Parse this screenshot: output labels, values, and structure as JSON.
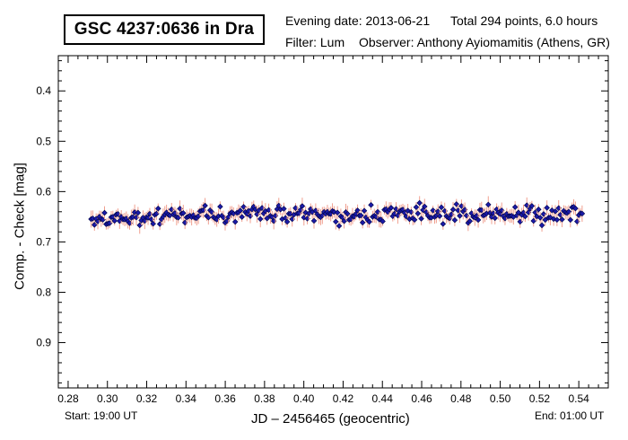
{
  "header": {
    "title": "GSC 4237:0636 in Dra",
    "evening_date": "Evening date: 2013-06-21",
    "total": "Total 294 points, 6.0 hours",
    "filter": "Filter: Lum",
    "observer": "Observer: Anthony Ayiomamitis (Athens, GR)"
  },
  "footer": {
    "start": "Start: 19:00 UT",
    "end": "End: 01:00 UT"
  },
  "chart_data": {
    "type": "scatter",
    "xlabel": "JD – 2456465  (geocentric)",
    "ylabel": "Comp. - Check [mag]",
    "xlim": [
      0.275,
      0.555
    ],
    "ylim": [
      0.33,
      0.99
    ],
    "y_inverted": true,
    "x_ticks": [
      0.28,
      0.3,
      0.32,
      0.34,
      0.36,
      0.38,
      0.4,
      0.42,
      0.44,
      0.46,
      0.48,
      0.5,
      0.52,
      0.54
    ],
    "x_tick_labels": [
      "0.28",
      "0.30",
      "0.32",
      "0.34",
      "0.36",
      "0.38",
      "0.40",
      "0.42",
      "0.44",
      "0.46",
      "0.48",
      "0.50",
      "0.52",
      "0.54"
    ],
    "y_ticks": [
      0.4,
      0.5,
      0.6,
      0.7,
      0.8,
      0.9
    ],
    "y_tick_labels": [
      "0.4",
      "0.5",
      "0.6",
      "0.7",
      "0.8",
      "0.9"
    ],
    "grid": false,
    "marker_color": "#1a1aa8",
    "marker_edge": "#000044",
    "errorbar_color": "#f0a090",
    "series": [
      {
        "x_start": 0.2917,
        "x_end": 0.5417,
        "count": 294,
        "mean": 0.645,
        "scatter": 0.012,
        "error": 0.013
      }
    ]
  }
}
